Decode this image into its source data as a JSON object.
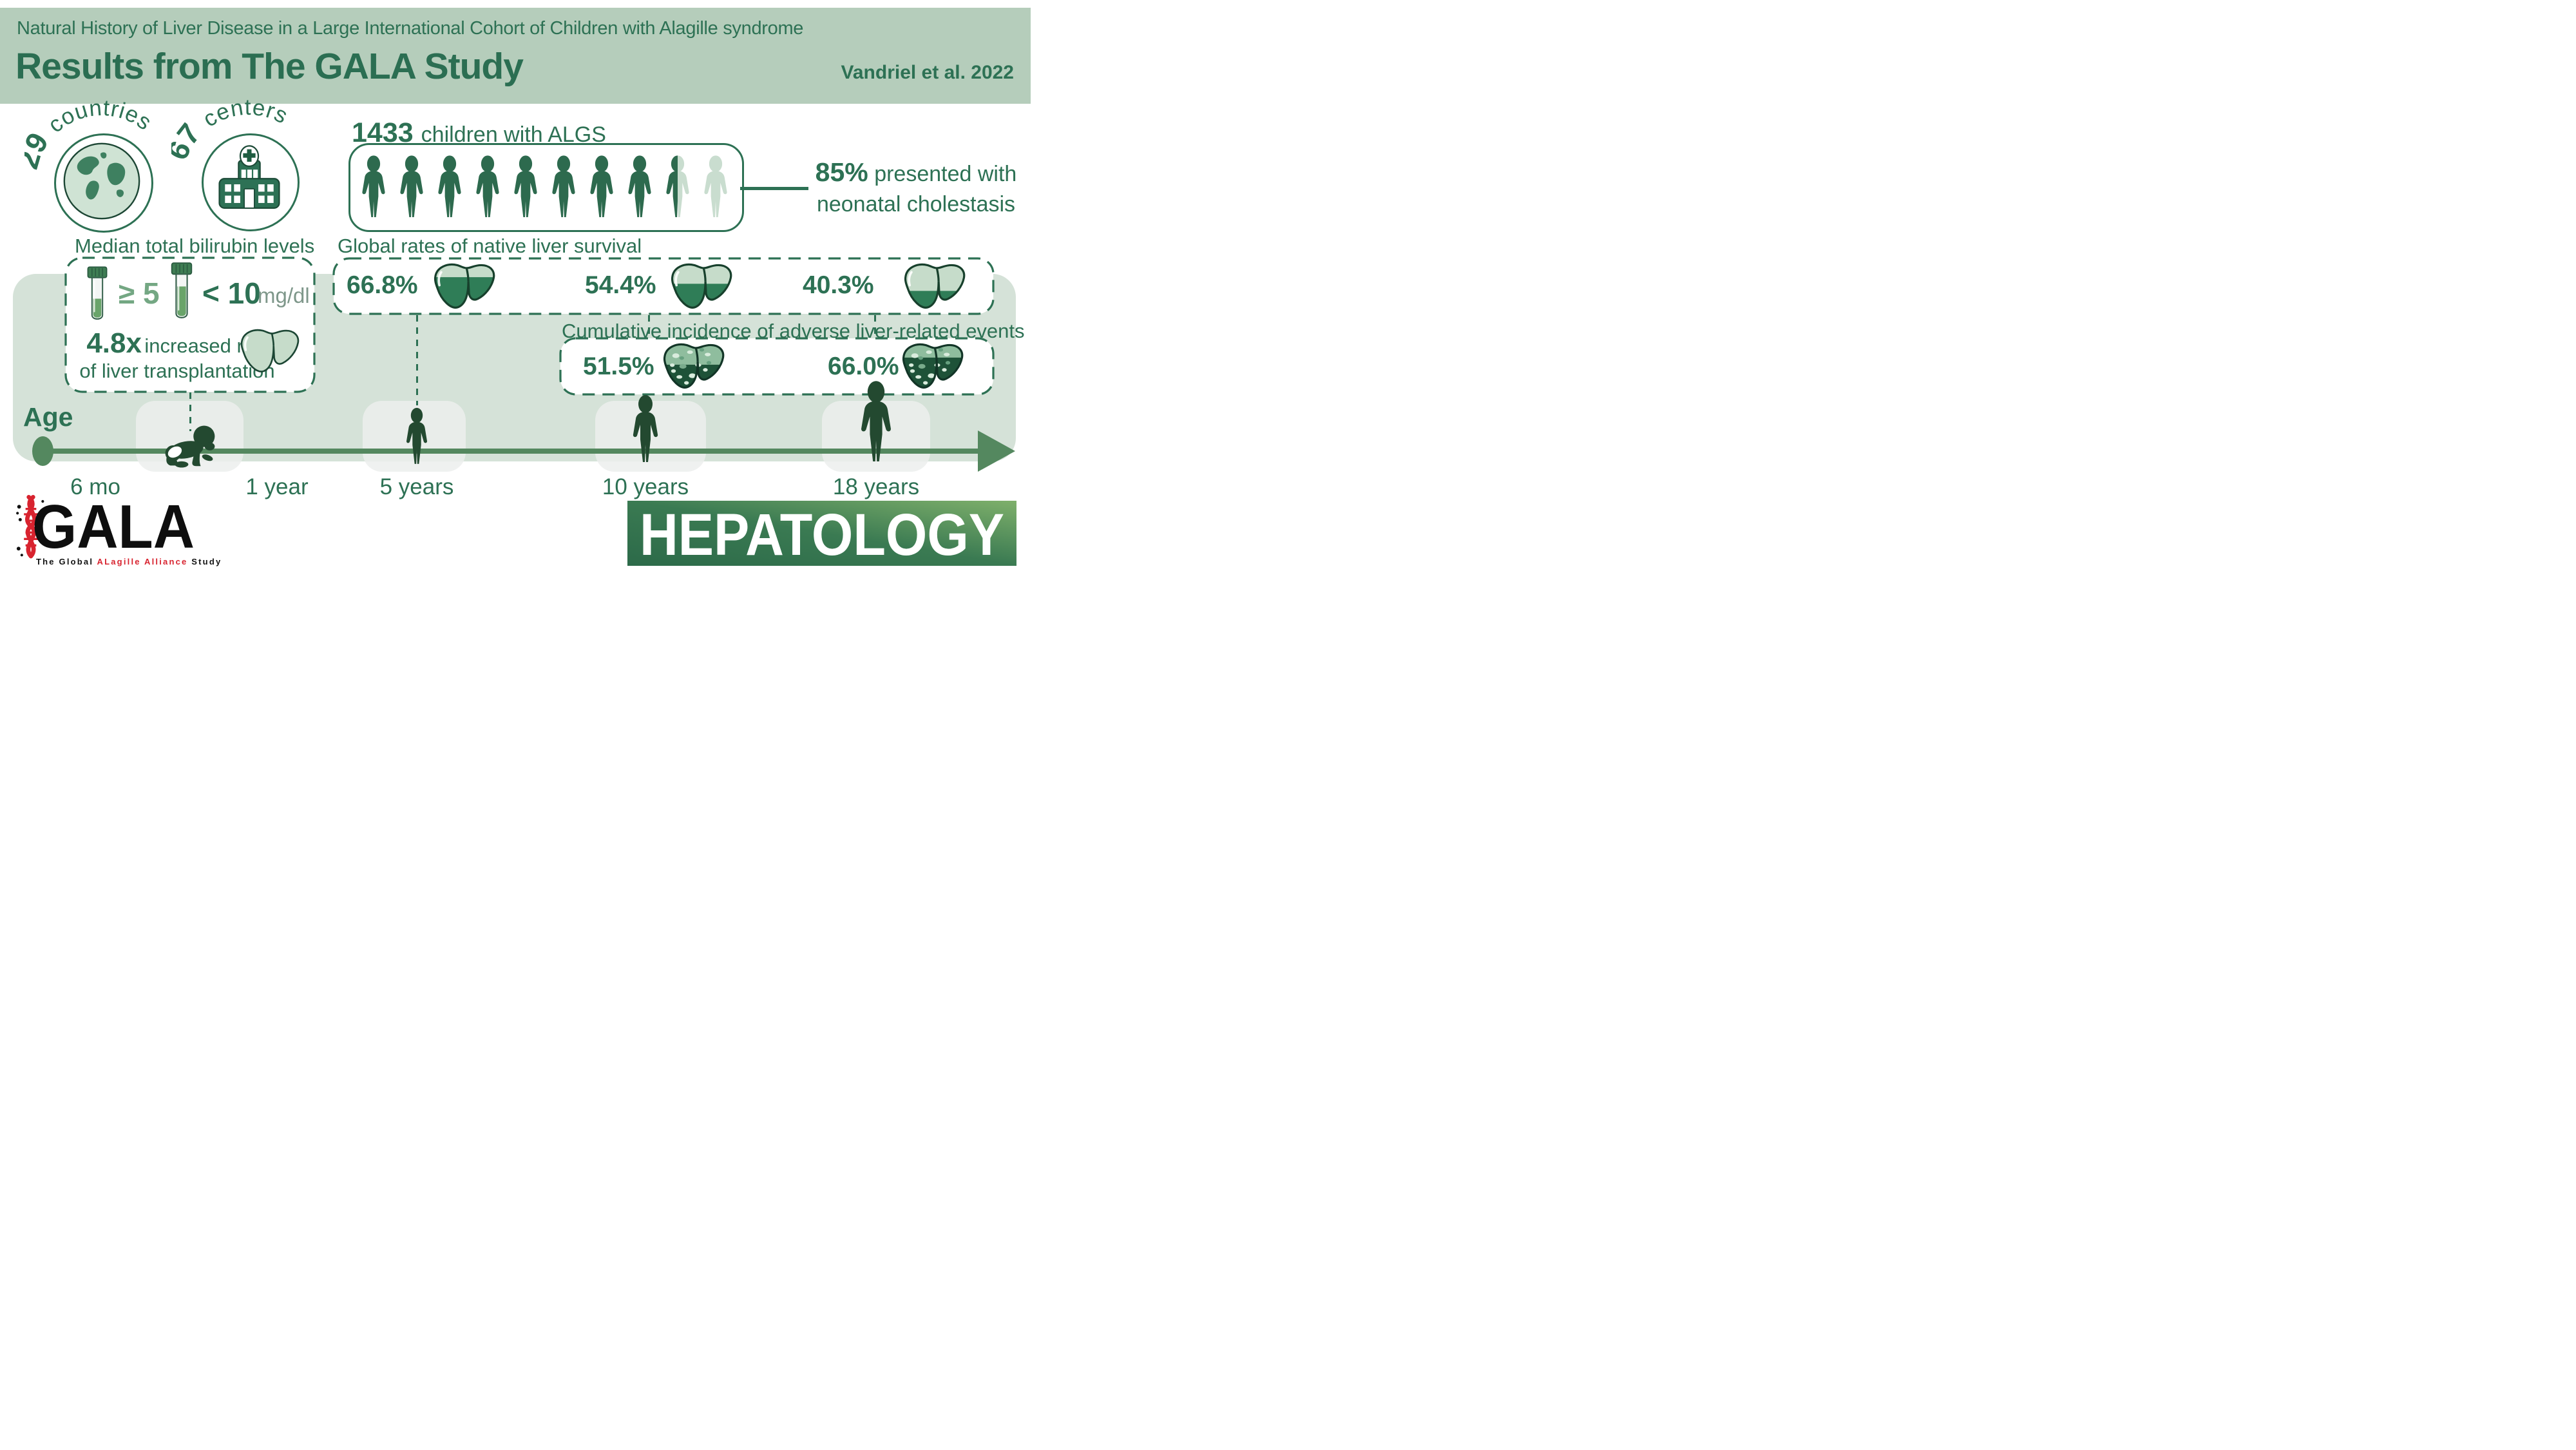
{
  "header": {
    "kicker": "Natural History of Liver Disease in a Large International Cohort of Children with Alagille syndrome",
    "title": "Results from The GALA Study",
    "citation": "Vandriel et al. 2022"
  },
  "stats": {
    "countries": {
      "value": "29",
      "label": "countries"
    },
    "centers": {
      "value": "67",
      "label": "centers"
    },
    "cohort": {
      "value": "1433",
      "label": "children with ALGS"
    },
    "cholestasis": {
      "value": "85%",
      "rest": "presented with",
      "line2": "neonatal cholestasis"
    }
  },
  "bilirubin": {
    "title": "Median total bilirubin levels",
    "ge": "≥ 5",
    "lt": "< 10",
    "unit": "mg/dl",
    "risk_value": "4.8x",
    "risk_rest": "increased risk",
    "risk_line2": "of liver transplantation"
  },
  "survival": {
    "title": "Global rates of native liver survival",
    "items": [
      {
        "value": "66.8%",
        "fill": 0.67
      },
      {
        "value": "54.4%",
        "fill": 0.54
      },
      {
        "value": "40.3%",
        "fill": 0.4
      }
    ]
  },
  "adverse": {
    "title": "Cumulative incidence of adverse liver-related events",
    "items": [
      {
        "value": "51.5%",
        "fill": 0.52
      },
      {
        "value": "66.0%",
        "fill": 0.66
      }
    ]
  },
  "timeline": {
    "age_label": "Age",
    "ticks": [
      "6 mo",
      "1 year",
      "5 years",
      "10 years",
      "18 years"
    ]
  },
  "footer": {
    "logo": {
      "acronym": "GALA",
      "tagline_pre": "The Global ",
      "tagline_highlight": "ALagille Alliance",
      "tagline_post": " Study"
    },
    "journal": "HEPATOLOGY"
  },
  "colors": {
    "accent": "#2d7154",
    "header_band": "#b5cdbb",
    "timeline_band": "#d5e2d8",
    "line_green": "#54885f",
    "silhouette": "#234930",
    "liver_light": "#c6dcca",
    "liver_dark": "#2f7d57",
    "logo_red": "#d8232f",
    "journal_gradient": [
      "#2c6a49",
      "#7fb06b"
    ]
  }
}
